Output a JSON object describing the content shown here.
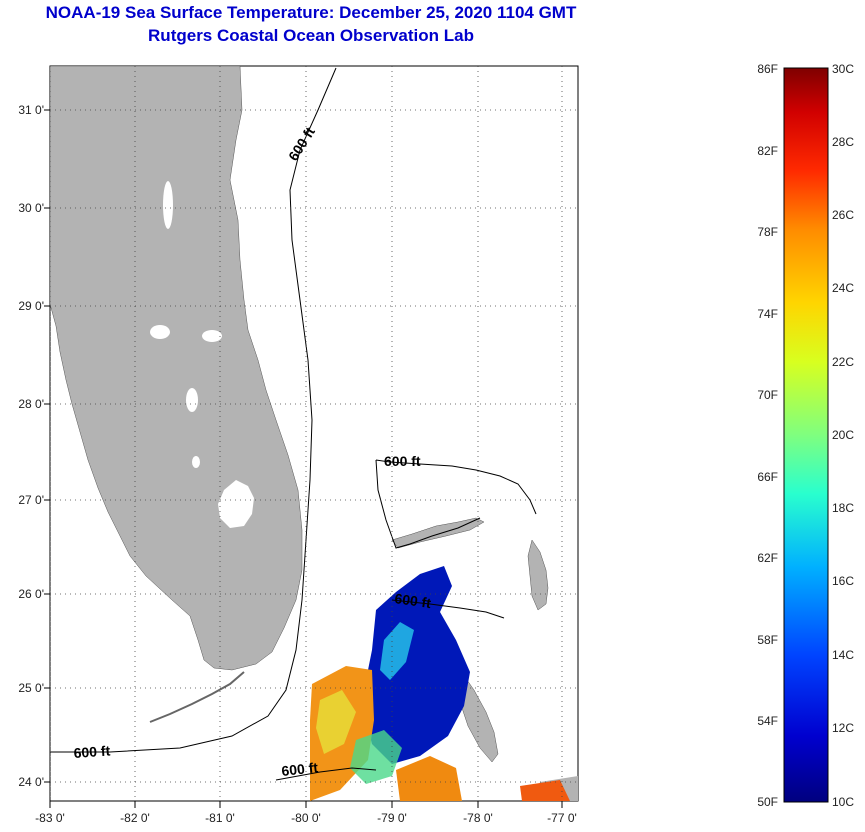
{
  "header": {
    "title": "NOAA-19 Sea Surface Temperature:  December 25, 2020 1104 GMT",
    "subtitle": "Rutgers Coastal Ocean Observation Lab"
  },
  "map": {
    "lon_ticks": [
      "-83 0'",
      "-82 0'",
      "-81 0'",
      "-80 0'",
      "-79 0'",
      "-78 0'",
      "-77 0'"
    ],
    "lat_ticks": [
      "31 0'",
      "30 0'",
      "29 0'",
      "28 0'",
      "27 0'",
      "26 0'",
      "25 0'",
      "24 0'"
    ],
    "contour_labels": [
      "600 ft",
      "600 ft",
      "600 ft",
      "600 ft",
      "600 ft"
    ],
    "land_color": "#b3b3b3"
  },
  "colorbar": {
    "f_labels": [
      "86F",
      "82F",
      "78F",
      "74F",
      "70F",
      "66F",
      "62F",
      "58F",
      "54F",
      "50F"
    ],
    "c_labels": [
      "30C",
      "28C",
      "26C",
      "24C",
      "22C",
      "20C",
      "18C",
      "16C",
      "14C",
      "12C",
      "10C"
    ],
    "colors": [
      "#7f0000",
      "#d10000",
      "#ff2a00",
      "#ff8c00",
      "#ffd500",
      "#d8ff1f",
      "#7fff7f",
      "#29ffce",
      "#00b0ff",
      "#0044ff",
      "#0000cf",
      "#00007f"
    ]
  }
}
